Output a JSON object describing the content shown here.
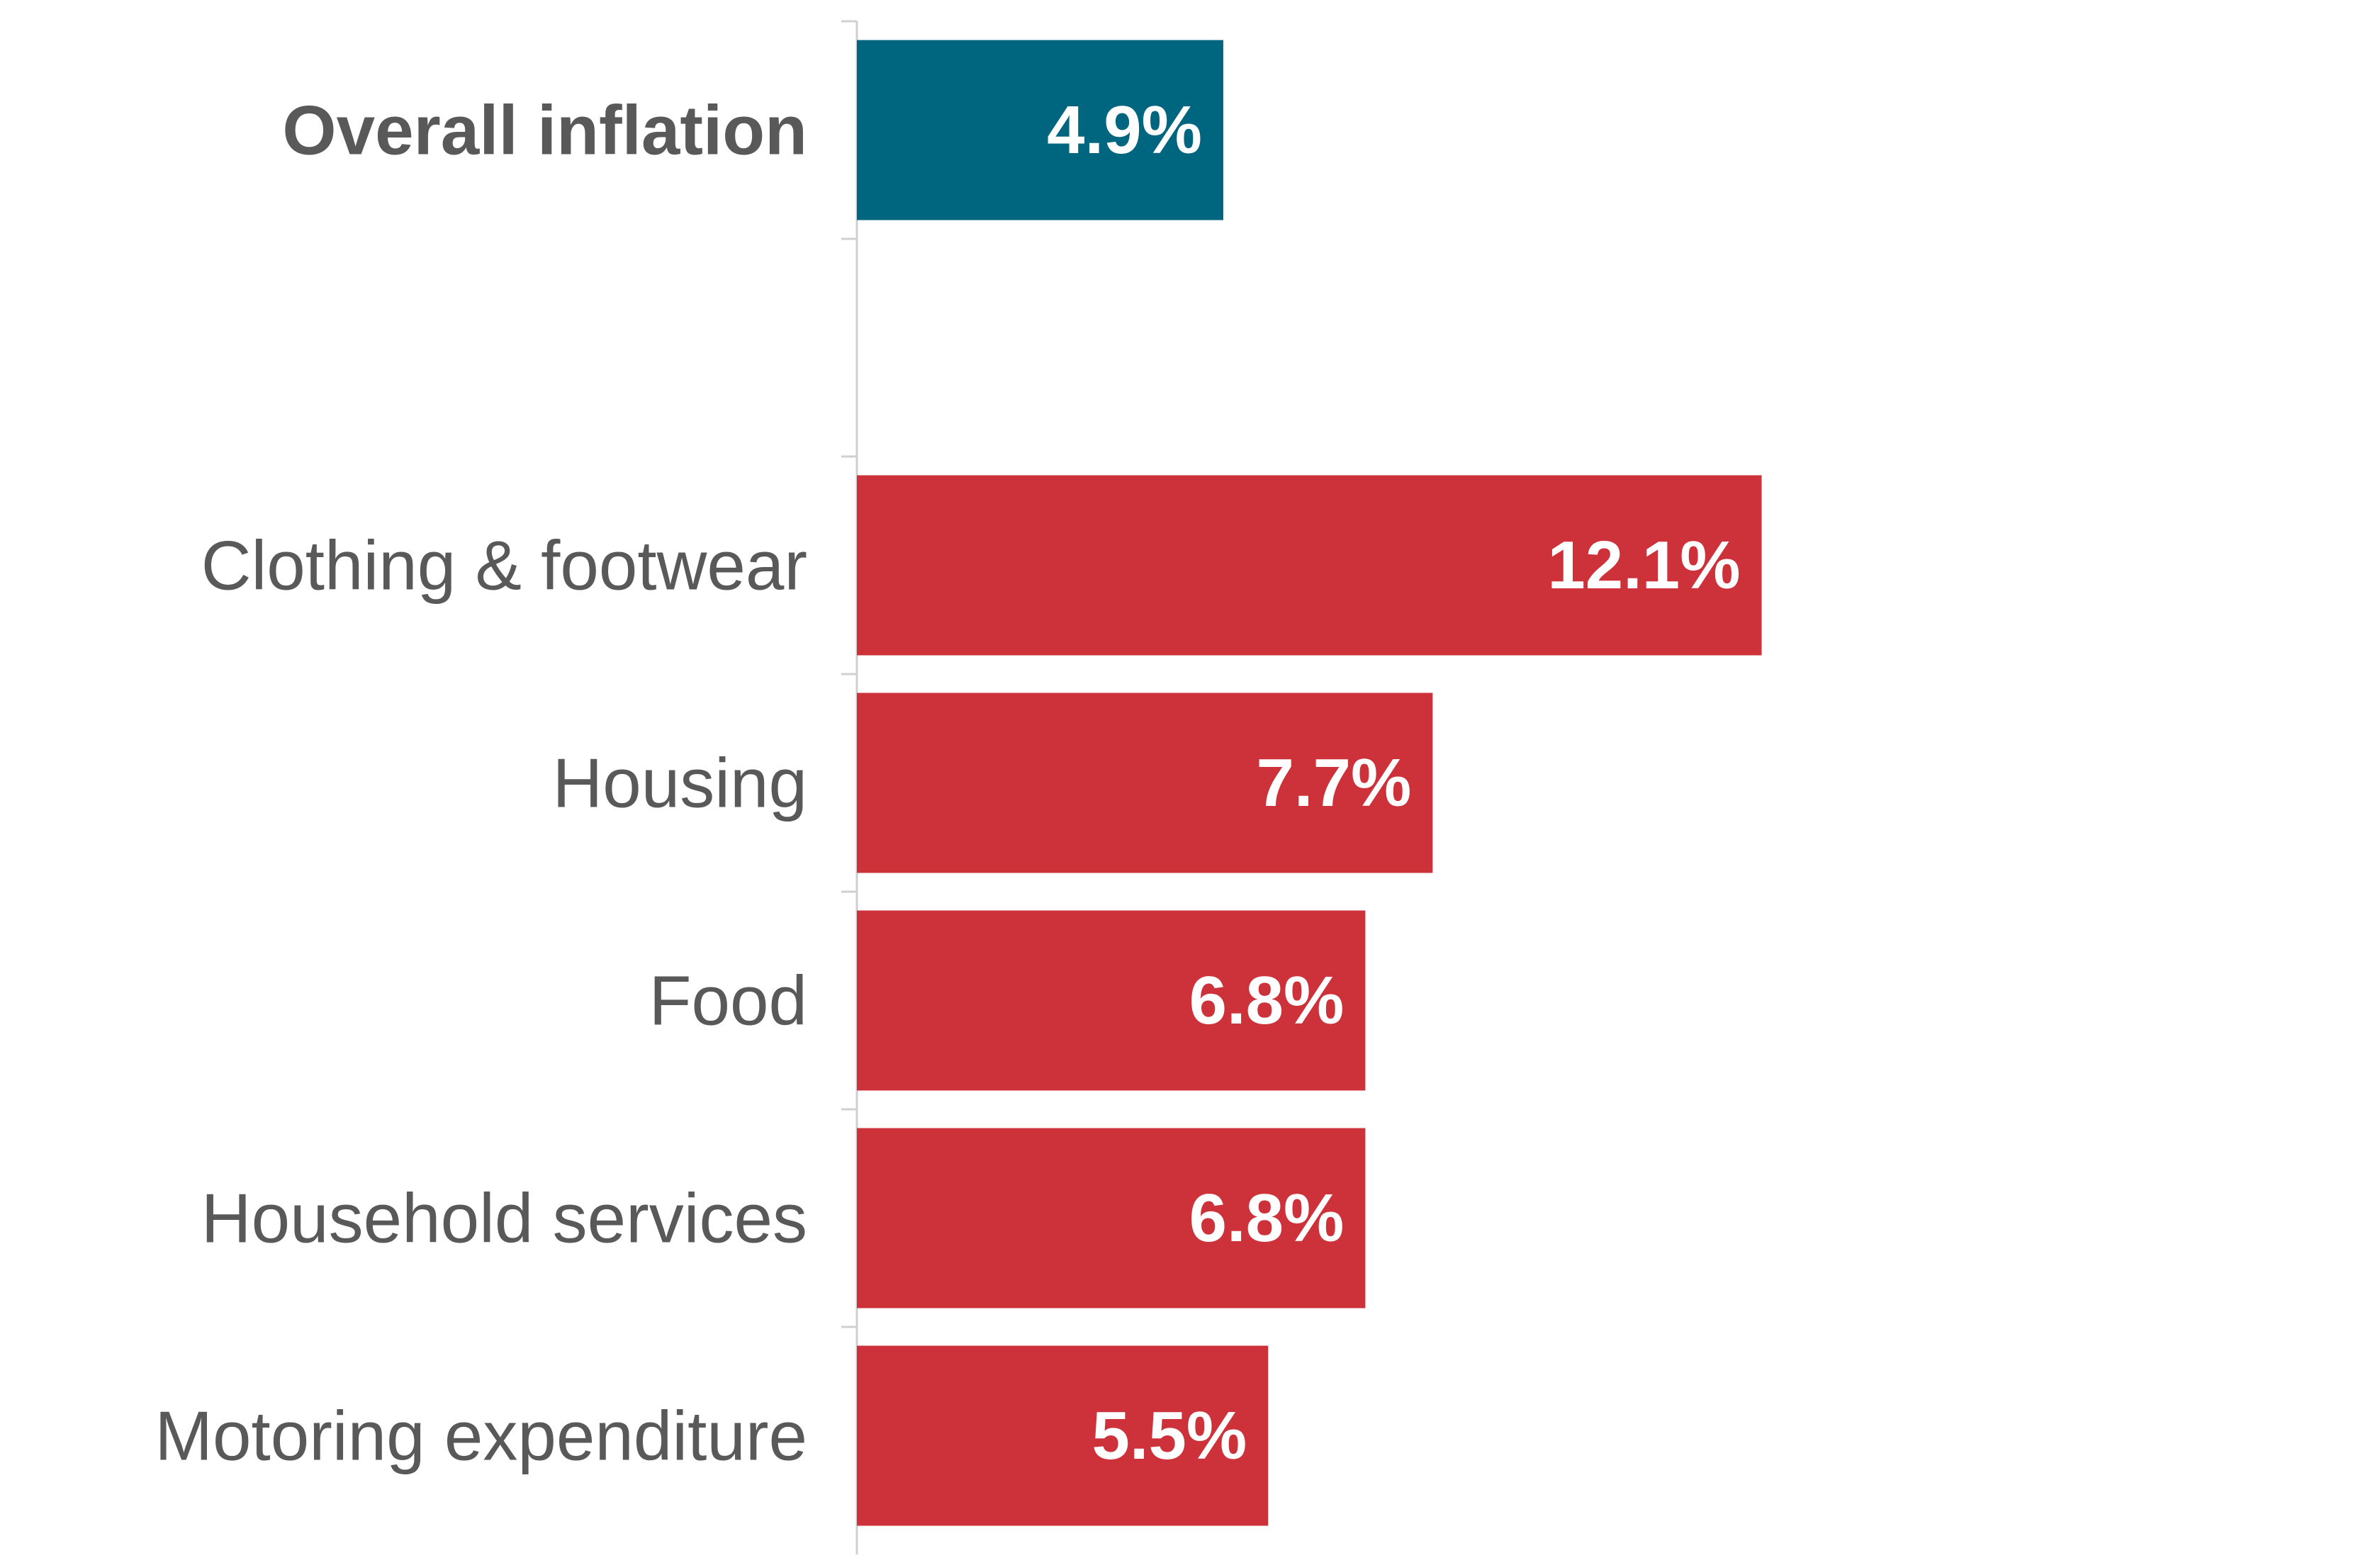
{
  "chart_data": {
    "type": "bar",
    "orientation": "horizontal",
    "title": "",
    "xlabel": "",
    "ylabel": "",
    "xlim": [
      0,
      14
    ],
    "grid": false,
    "legend": "none",
    "categories": [
      "Overall inflation",
      "",
      "Clothing & footwear",
      "Housing",
      "Food ",
      "Household services",
      "Motoring expenditure"
    ],
    "values": [
      4.9,
      null,
      12.1,
      7.7,
      6.8,
      6.8,
      5.5
    ],
    "data_labels": [
      "4.9%",
      "",
      "12.1%",
      "7.7%",
      "6.8%",
      "6.8%",
      "5.5%"
    ],
    "emphasis": [
      true,
      false,
      false,
      false,
      false,
      false,
      false
    ],
    "bar_colors": [
      "#00657f",
      "",
      "#cd323b",
      "#cd323b",
      "#cd323b",
      "#cd323b",
      "#cd323b"
    ]
  },
  "colors": {
    "axis_line": "#d0d0d0",
    "category_text": "#595959",
    "value_label_text": "#ffffff"
  }
}
